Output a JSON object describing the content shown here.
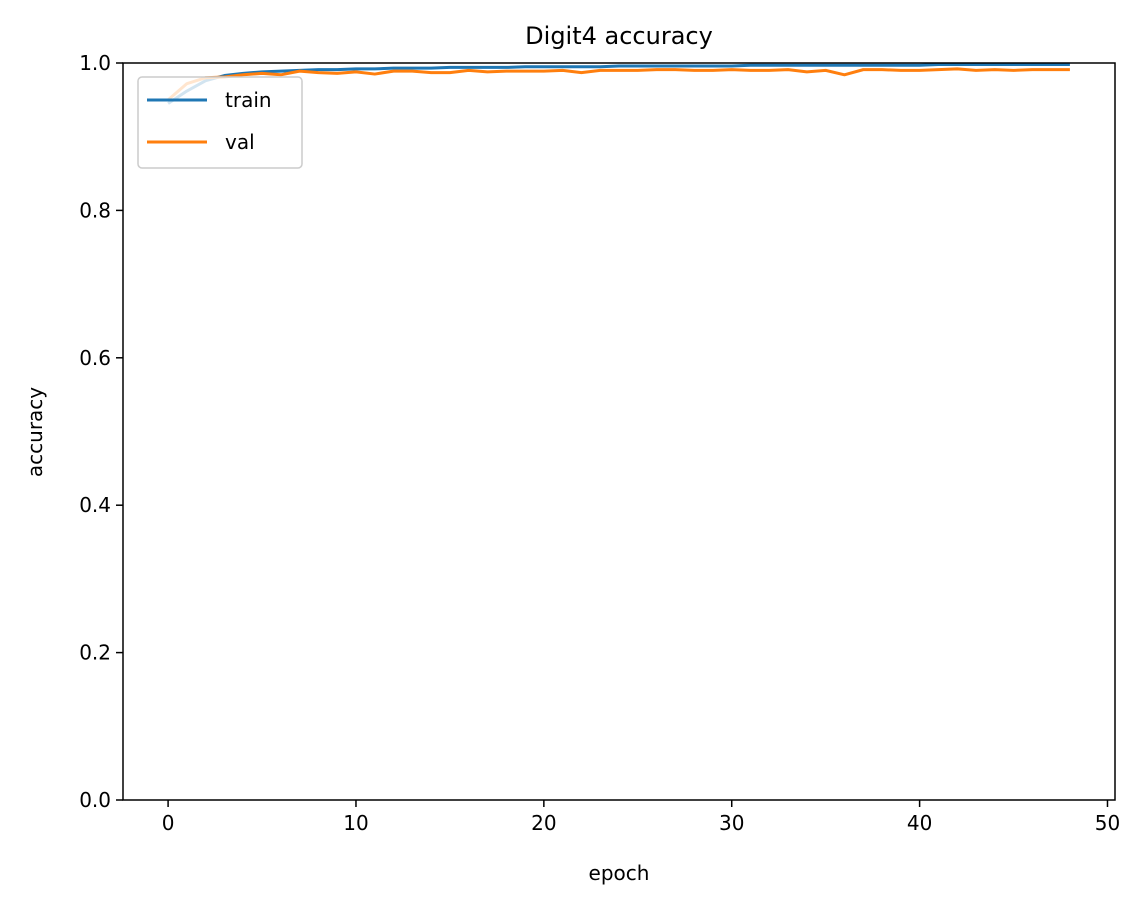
{
  "chart_data": {
    "type": "line",
    "title": "Digit4 accuracy",
    "xlabel": "epoch",
    "ylabel": "accuracy",
    "xlim": [
      -2.4,
      50.4
    ],
    "ylim": [
      0.0,
      1.0
    ],
    "xticks": [
      0,
      10,
      20,
      30,
      40,
      50
    ],
    "yticks": [
      0.0,
      0.2,
      0.4,
      0.6,
      0.8,
      1.0
    ],
    "xtick_labels": [
      "0",
      "10",
      "20",
      "30",
      "40",
      "50"
    ],
    "ytick_labels": [
      "0.0",
      "0.2",
      "0.4",
      "0.6",
      "0.8",
      "1.0"
    ],
    "grid": false,
    "legend_position": "upper left",
    "x": [
      0,
      1,
      2,
      3,
      4,
      5,
      6,
      7,
      8,
      9,
      10,
      11,
      12,
      13,
      14,
      15,
      16,
      17,
      18,
      19,
      20,
      21,
      22,
      23,
      24,
      25,
      26,
      27,
      28,
      29,
      30,
      31,
      32,
      33,
      34,
      35,
      36,
      37,
      38,
      39,
      40,
      41,
      42,
      43,
      44,
      45,
      46,
      47,
      48
    ],
    "series": [
      {
        "name": "train",
        "color": "#1f77b4",
        "values": [
          0.945,
          0.962,
          0.976,
          0.983,
          0.986,
          0.988,
          0.989,
          0.99,
          0.991,
          0.991,
          0.992,
          0.992,
          0.993,
          0.993,
          0.993,
          0.994,
          0.994,
          0.994,
          0.994,
          0.995,
          0.995,
          0.995,
          0.995,
          0.995,
          0.996,
          0.996,
          0.996,
          0.996,
          0.996,
          0.996,
          0.996,
          0.997,
          0.997,
          0.997,
          0.997,
          0.997,
          0.997,
          0.997,
          0.997,
          0.997,
          0.997,
          0.998,
          0.998,
          0.998,
          0.998,
          0.998,
          0.998,
          0.998,
          0.998
        ]
      },
      {
        "name": "val",
        "color": "#ff7f0e",
        "values": [
          0.95,
          0.972,
          0.98,
          0.981,
          0.984,
          0.986,
          0.984,
          0.989,
          0.987,
          0.986,
          0.988,
          0.985,
          0.989,
          0.989,
          0.987,
          0.987,
          0.99,
          0.988,
          0.989,
          0.989,
          0.989,
          0.99,
          0.987,
          0.99,
          0.99,
          0.99,
          0.991,
          0.991,
          0.99,
          0.99,
          0.991,
          0.99,
          0.99,
          0.991,
          0.988,
          0.99,
          0.984,
          0.991,
          0.991,
          0.99,
          0.99,
          0.991,
          0.992,
          0.99,
          0.991,
          0.99,
          0.991,
          0.991,
          0.991
        ]
      }
    ]
  }
}
